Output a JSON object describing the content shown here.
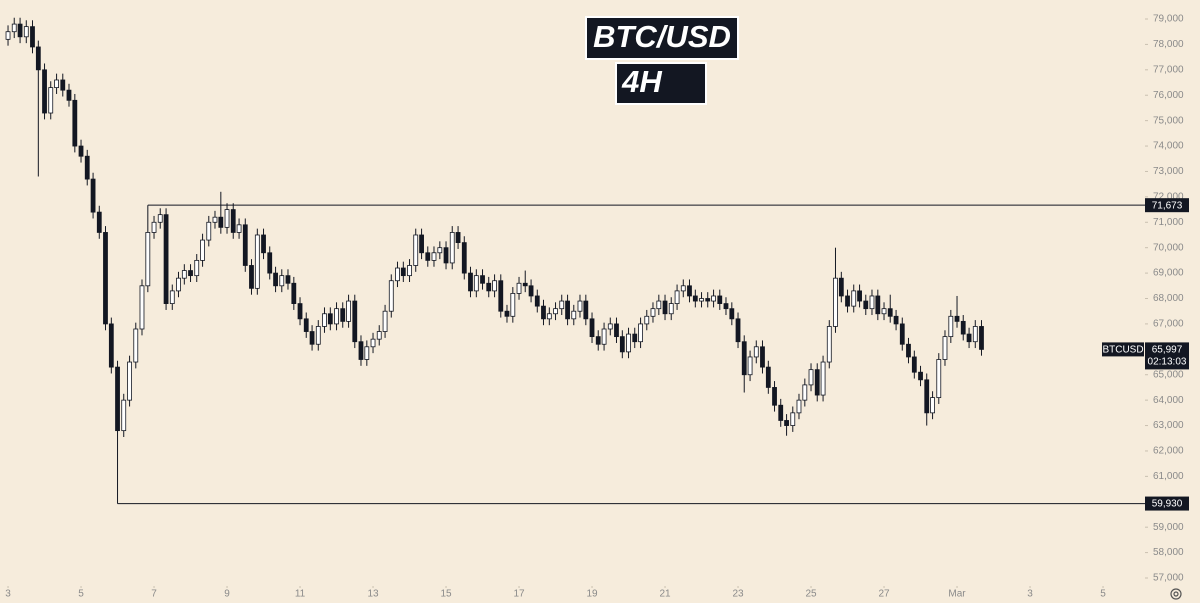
{
  "chart_data": {
    "type": "candlestick",
    "title": "BTC/USD",
    "subtitle": "4H",
    "name": "BTCUSD",
    "up_color": "#ffffff",
    "down_color": "#131722",
    "edge_color": "#131722",
    "xlim": [
      2.78,
      34.15
    ],
    "ylim": [
      56725,
      79748
    ],
    "xticks": [
      3,
      5,
      7,
      9,
      11,
      13,
      15,
      17,
      19,
      21,
      23,
      25,
      27,
      {
        "value": 29,
        "label": "Mar"
      },
      {
        "value": 31,
        "label": "3"
      },
      {
        "value": 33,
        "label": "5"
      }
    ],
    "yticks": [
      {
        "value": 57000,
        "label": "57,000"
      },
      {
        "value": 58000,
        "label": "58,000"
      },
      {
        "value": 59000,
        "label": "59,000"
      },
      {
        "value": 60000,
        "label": "60,000"
      },
      {
        "value": 61000,
        "label": "61,000"
      },
      {
        "value": 62000,
        "label": "62,000"
      },
      {
        "value": 63000,
        "label": "63,000"
      },
      {
        "value": 64000,
        "label": "64,000"
      },
      {
        "value": 65000,
        "label": "65,000"
      },
      {
        "value": 66000,
        "label": "66,000"
      },
      {
        "value": 67000,
        "label": "67,000"
      },
      {
        "value": 68000,
        "label": "68,000"
      },
      {
        "value": 69000,
        "label": "69,000"
      },
      {
        "value": 70000,
        "label": "70,000"
      },
      {
        "value": 71000,
        "label": "71,000"
      },
      {
        "value": 72000,
        "label": "72,000"
      },
      {
        "value": 73000,
        "label": "73,000"
      },
      {
        "value": 74000,
        "label": "74,000"
      },
      {
        "value": 75000,
        "label": "75,000"
      },
      {
        "value": 76000,
        "label": "76,000"
      },
      {
        "value": 77000,
        "label": "77,000"
      },
      {
        "value": 78000,
        "label": "78,000"
      },
      {
        "value": 79000,
        "label": "79,000"
      }
    ],
    "levels": [
      {
        "value": 71673,
        "label": "71,673",
        "x": 6.83
      },
      {
        "value": 59930,
        "label": "59,930",
        "x": 6.0
      }
    ],
    "last_price": {
      "value": 65997,
      "label": "65,997"
    },
    "countdown": "02:13:03",
    "x": [
      3,
      3.17,
      3.33,
      3.5,
      3.67,
      3.83,
      4,
      4.17,
      4.33,
      4.5,
      4.67,
      4.83,
      5,
      5.17,
      5.33,
      5.5,
      5.67,
      5.83,
      6,
      6.17,
      6.33,
      6.5,
      6.67,
      6.83,
      7,
      7.17,
      7.33,
      7.5,
      7.67,
      7.83,
      8,
      8.17,
      8.33,
      8.5,
      8.67,
      8.83,
      9,
      9.17,
      9.33,
      9.5,
      9.67,
      9.83,
      10,
      10.17,
      10.33,
      10.5,
      10.67,
      10.83,
      11,
      11.17,
      11.33,
      11.5,
      11.67,
      11.83,
      12,
      12.17,
      12.33,
      12.5,
      12.67,
      12.83,
      13,
      13.17,
      13.33,
      13.5,
      13.67,
      13.83,
      14,
      14.17,
      14.33,
      14.5,
      14.67,
      14.83,
      15,
      15.17,
      15.33,
      15.5,
      15.67,
      15.83,
      16,
      16.17,
      16.33,
      16.5,
      16.67,
      16.83,
      17,
      17.17,
      17.33,
      17.5,
      17.67,
      17.83,
      18,
      18.17,
      18.33,
      18.5,
      18.67,
      18.83,
      19,
      19.17,
      19.33,
      19.5,
      19.67,
      19.83,
      20,
      20.17,
      20.33,
      20.5,
      20.67,
      20.83,
      21,
      21.17,
      21.33,
      21.5,
      21.67,
      21.83,
      22,
      22.17,
      22.33,
      22.5,
      22.67,
      22.83,
      23,
      23.17,
      23.33,
      23.5,
      23.67,
      23.83,
      24,
      24.17,
      24.33,
      24.5,
      24.67,
      24.83,
      25,
      25.17,
      25.33,
      25.5,
      25.67,
      25.83,
      26,
      26.17,
      26.33,
      26.5,
      26.67,
      26.83,
      27,
      27.17,
      27.33,
      27.5,
      27.67,
      27.83,
      28,
      28.17,
      28.33,
      28.5,
      28.67,
      28.83,
      29,
      29.17,
      29.33,
      29.5,
      29.67
    ],
    "values": [
      [
        78200,
        78750,
        77950,
        78500
      ],
      [
        78500,
        79050,
        78250,
        78800
      ],
      [
        78800,
        79050,
        78050,
        78300
      ],
      [
        78300,
        78950,
        78050,
        78700
      ],
      [
        78700,
        78950,
        77650,
        77900
      ],
      [
        77900,
        78150,
        72800,
        77000
      ],
      [
        77000,
        77250,
        75050,
        75300
      ],
      [
        75300,
        76550,
        75050,
        76300
      ],
      [
        76300,
        76850,
        76050,
        76600
      ],
      [
        76600,
        76850,
        75950,
        76200
      ],
      [
        76200,
        76450,
        75550,
        75800
      ],
      [
        75800,
        76050,
        73750,
        74000
      ],
      [
        74000,
        74250,
        73350,
        73600
      ],
      [
        73600,
        73850,
        72450,
        72700
      ],
      [
        72700,
        72950,
        71150,
        71400
      ],
      [
        71400,
        71650,
        70350,
        70600
      ],
      [
        70600,
        70850,
        66750,
        67000
      ],
      [
        67000,
        67250,
        65050,
        65300
      ],
      [
        65300,
        65550,
        59930,
        62800
      ],
      [
        62800,
        64250,
        62550,
        64000
      ],
      [
        64000,
        65750,
        63750,
        65500
      ],
      [
        65500,
        67050,
        65250,
        66800
      ],
      [
        66800,
        68750,
        66550,
        68500
      ],
      [
        68500,
        71673,
        68250,
        70600
      ],
      [
        70600,
        71250,
        70350,
        71000
      ],
      [
        71000,
        71550,
        70750,
        71300
      ],
      [
        71300,
        71550,
        67550,
        67800
      ],
      [
        67800,
        68550,
        67550,
        68300
      ],
      [
        68300,
        69050,
        68050,
        68800
      ],
      [
        68800,
        69350,
        68550,
        69100
      ],
      [
        69100,
        69350,
        68650,
        68900
      ],
      [
        68900,
        69750,
        68650,
        69500
      ],
      [
        69500,
        70550,
        69250,
        70300
      ],
      [
        70300,
        71250,
        70050,
        71000
      ],
      [
        71000,
        71450,
        70750,
        71200
      ],
      [
        71200,
        72200,
        70550,
        70800
      ],
      [
        70800,
        71750,
        70550,
        71500
      ],
      [
        71500,
        71750,
        70350,
        70600
      ],
      [
        70600,
        71150,
        70350,
        70900
      ],
      [
        70900,
        71150,
        69050,
        69300
      ],
      [
        69300,
        69550,
        68150,
        68400
      ],
      [
        68400,
        70750,
        68150,
        70500
      ],
      [
        70500,
        70750,
        69550,
        69800
      ],
      [
        69800,
        70050,
        68750,
        69000
      ],
      [
        69000,
        69250,
        68250,
        68500
      ],
      [
        68500,
        69150,
        68250,
        68900
      ],
      [
        68900,
        69150,
        68350,
        68600
      ],
      [
        68600,
        68850,
        67550,
        67800
      ],
      [
        67800,
        68050,
        66950,
        67200
      ],
      [
        67200,
        67450,
        66450,
        66700
      ],
      [
        66700,
        66950,
        65950,
        66200
      ],
      [
        66200,
        67150,
        65950,
        66900
      ],
      [
        66900,
        67650,
        66650,
        67400
      ],
      [
        67400,
        67650,
        66750,
        67000
      ],
      [
        67000,
        67850,
        66750,
        67600
      ],
      [
        67600,
        67850,
        66850,
        67100
      ],
      [
        67100,
        68150,
        66850,
        67900
      ],
      [
        67900,
        68150,
        66050,
        66300
      ],
      [
        66300,
        66550,
        65350,
        65600
      ],
      [
        65600,
        66350,
        65350,
        66100
      ],
      [
        66100,
        66650,
        65850,
        66400
      ],
      [
        66400,
        66950,
        66150,
        66700
      ],
      [
        66700,
        67750,
        66450,
        67500
      ],
      [
        67500,
        68950,
        67250,
        68700
      ],
      [
        68700,
        69450,
        68450,
        69200
      ],
      [
        69200,
        69450,
        68650,
        68900
      ],
      [
        68900,
        69550,
        68650,
        69300
      ],
      [
        69300,
        70750,
        69050,
        70500
      ],
      [
        70500,
        70750,
        69550,
        69800
      ],
      [
        69800,
        70050,
        69250,
        69500
      ],
      [
        69500,
        70050,
        69250,
        69800
      ],
      [
        69800,
        70250,
        69550,
        70000
      ],
      [
        70000,
        70250,
        69150,
        69400
      ],
      [
        69400,
        70850,
        69150,
        70600
      ],
      [
        70600,
        70850,
        69950,
        70200
      ],
      [
        70200,
        70450,
        68750,
        69000
      ],
      [
        69000,
        69250,
        68050,
        68300
      ],
      [
        68300,
        69150,
        68050,
        68900
      ],
      [
        68900,
        69150,
        68350,
        68600
      ],
      [
        68600,
        68850,
        68050,
        68300
      ],
      [
        68300,
        68950,
        68050,
        68700
      ],
      [
        68700,
        68950,
        67250,
        67500
      ],
      [
        67500,
        67750,
        67050,
        67300
      ],
      [
        67300,
        68450,
        67050,
        68200
      ],
      [
        68200,
        68850,
        67950,
        68600
      ],
      [
        68600,
        69100,
        68250,
        68500
      ],
      [
        68500,
        68750,
        67850,
        68100
      ],
      [
        68100,
        68350,
        67450,
        67700
      ],
      [
        67700,
        67950,
        66950,
        67200
      ],
      [
        67200,
        67650,
        66950,
        67400
      ],
      [
        67400,
        67850,
        67150,
        67600
      ],
      [
        67600,
        68150,
        67350,
        67900
      ],
      [
        67900,
        68150,
        66950,
        67200
      ],
      [
        67200,
        67750,
        66950,
        67500
      ],
      [
        67500,
        68150,
        67250,
        67900
      ],
      [
        67900,
        68150,
        66950,
        67200
      ],
      [
        67200,
        67450,
        66250,
        66500
      ],
      [
        66500,
        66750,
        65950,
        66200
      ],
      [
        66200,
        67050,
        65950,
        66800
      ],
      [
        66800,
        67250,
        66550,
        67000
      ],
      [
        67000,
        67250,
        66250,
        66500
      ],
      [
        66500,
        66750,
        65650,
        65900
      ],
      [
        65900,
        66850,
        65650,
        66600
      ],
      [
        66600,
        66850,
        66050,
        66300
      ],
      [
        66300,
        67250,
        66050,
        67000
      ],
      [
        67000,
        67550,
        66750,
        67300
      ],
      [
        67300,
        67850,
        67050,
        67600
      ],
      [
        67600,
        68150,
        67350,
        67900
      ],
      [
        67900,
        68150,
        67150,
        67400
      ],
      [
        67400,
        68050,
        67150,
        67800
      ],
      [
        67800,
        68550,
        67550,
        68300
      ],
      [
        68300,
        68750,
        68050,
        68500
      ],
      [
        68500,
        68750,
        67850,
        68100
      ],
      [
        68100,
        68350,
        67650,
        67900
      ],
      [
        67900,
        68250,
        67650,
        68000
      ],
      [
        68000,
        68250,
        67650,
        67900
      ],
      [
        67900,
        68350,
        67650,
        68100
      ],
      [
        68100,
        68350,
        67550,
        67800
      ],
      [
        67800,
        68050,
        67350,
        67600
      ],
      [
        67600,
        67850,
        66950,
        67200
      ],
      [
        67200,
        67450,
        66050,
        66300
      ],
      [
        66300,
        66550,
        64300,
        65000
      ],
      [
        65000,
        65950,
        64750,
        65700
      ],
      [
        65700,
        66350,
        65450,
        66100
      ],
      [
        66100,
        66350,
        65050,
        65300
      ],
      [
        65300,
        65550,
        64250,
        64500
      ],
      [
        64500,
        64750,
        63550,
        63800
      ],
      [
        63800,
        64050,
        62950,
        63200
      ],
      [
        63200,
        63450,
        62600,
        63000
      ],
      [
        63000,
        63750,
        62750,
        63500
      ],
      [
        63500,
        64250,
        63250,
        64000
      ],
      [
        64000,
        64850,
        63750,
        64600
      ],
      [
        64600,
        65450,
        64350,
        65200
      ],
      [
        65200,
        65450,
        63950,
        64200
      ],
      [
        64200,
        65750,
        63950,
        65500
      ],
      [
        65500,
        67150,
        65250,
        66900
      ],
      [
        66900,
        70000,
        66650,
        68800
      ],
      [
        68800,
        69050,
        67850,
        68100
      ],
      [
        68100,
        68350,
        67450,
        67700
      ],
      [
        67700,
        68550,
        67450,
        68300
      ],
      [
        68300,
        68550,
        67650,
        67900
      ],
      [
        67900,
        68150,
        67350,
        67600
      ],
      [
        67600,
        68350,
        67350,
        68100
      ],
      [
        68100,
        68350,
        67150,
        67400
      ],
      [
        67400,
        67850,
        67150,
        67600
      ],
      [
        67600,
        68150,
        67050,
        67300
      ],
      [
        67300,
        67550,
        66750,
        67000
      ],
      [
        67000,
        67250,
        65950,
        66200
      ],
      [
        66200,
        66450,
        65450,
        65700
      ],
      [
        65700,
        65950,
        64850,
        65100
      ],
      [
        65100,
        65350,
        64550,
        64800
      ],
      [
        64800,
        65050,
        63000,
        63500
      ],
      [
        63500,
        64350,
        63250,
        64100
      ],
      [
        64100,
        65850,
        63850,
        65600
      ],
      [
        65600,
        66750,
        65350,
        66500
      ],
      [
        66500,
        67550,
        66250,
        67300
      ],
      [
        67300,
        68100,
        66850,
        67100
      ],
      [
        67100,
        67350,
        66350,
        66600
      ],
      [
        66600,
        66850,
        66050,
        66300
      ],
      [
        66300,
        67150,
        66050,
        66900
      ],
      [
        66900,
        67150,
        65750,
        65997
      ]
    ]
  }
}
